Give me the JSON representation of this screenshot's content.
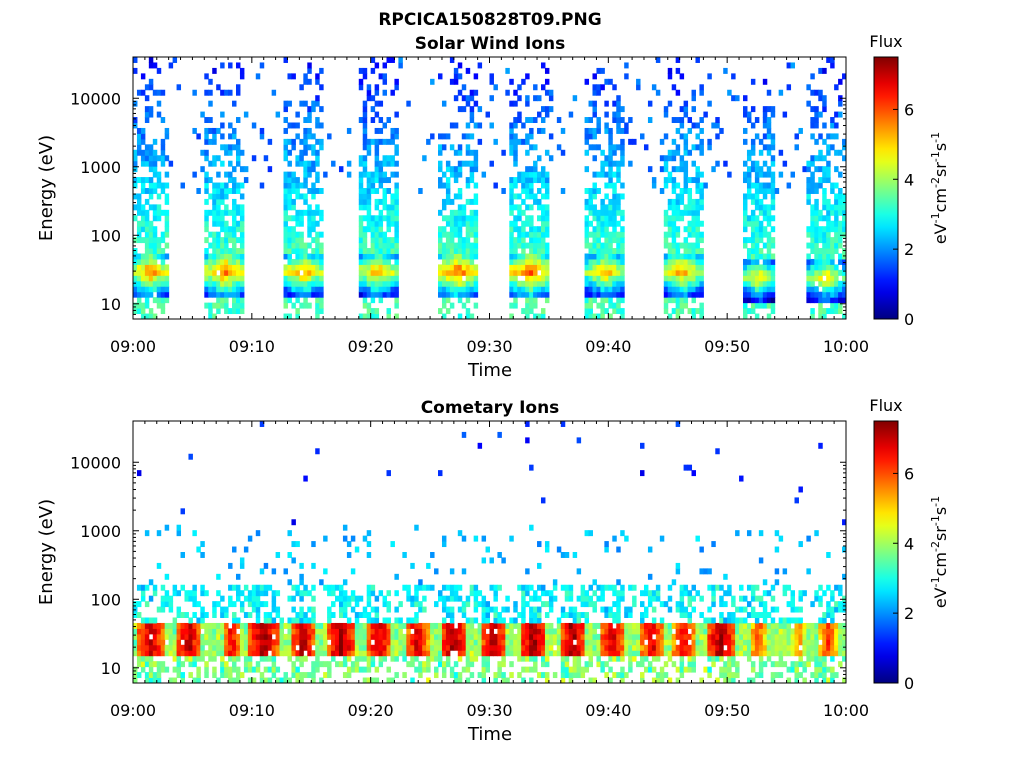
{
  "figure_title": "RPCICA150828T09.PNG",
  "chart_data": [
    {
      "type": "heatmap",
      "title": "Solar Wind Ions",
      "xlabel": "Time",
      "ylabel": "Energy (eV)",
      "x_ticks": [
        "09:00",
        "09:10",
        "09:20",
        "09:30",
        "09:40",
        "09:50",
        "10:00"
      ],
      "x_range": [
        "09:00",
        "10:00"
      ],
      "y_scale": "log",
      "y_ticks": [
        10,
        100,
        1000,
        10000
      ],
      "y_range": [
        6,
        40000
      ],
      "colorbar": {
        "label": "Flux",
        "units": "eV",
        "units_parts": [
          "eV",
          "-1",
          "cm",
          "-2",
          "sr",
          "-1",
          "s",
          "-1"
        ],
        "ticks": [
          0,
          2,
          4,
          6
        ],
        "range": [
          0,
          7.5
        ],
        "colormap": "jet"
      },
      "bursts": [
        {
          "center_min": 1.5,
          "width_min": 2.7,
          "peak_flux": 5.8,
          "peak_energy_eV": 30
        },
        {
          "center_min": 7.8,
          "width_min": 3.2,
          "peak_flux": 5.9,
          "peak_energy_eV": 30
        },
        {
          "center_min": 14.3,
          "width_min": 3.2,
          "peak_flux": 5.6,
          "peak_energy_eV": 30
        },
        {
          "center_min": 20.6,
          "width_min": 3.2,
          "peak_flux": 5.5,
          "peak_energy_eV": 30
        },
        {
          "center_min": 27.3,
          "width_min": 3.4,
          "peak_flux": 6.0,
          "peak_energy_eV": 30
        },
        {
          "center_min": 33.4,
          "width_min": 3.2,
          "peak_flux": 6.1,
          "peak_energy_eV": 30
        },
        {
          "center_min": 39.8,
          "width_min": 3.2,
          "peak_flux": 5.4,
          "peak_energy_eV": 30
        },
        {
          "center_min": 46.2,
          "width_min": 3.2,
          "peak_flux": 5.6,
          "peak_energy_eV": 30
        },
        {
          "center_min": 52.6,
          "width_min": 2.6,
          "peak_flux": 5.0,
          "peak_energy_eV": 25
        },
        {
          "center_min": 58.3,
          "width_min": 3.2,
          "peak_flux": 5.1,
          "peak_energy_eV": 25
        }
      ]
    },
    {
      "type": "heatmap",
      "title": "Cometary Ions",
      "xlabel": "Time",
      "ylabel": "Energy (eV)",
      "x_ticks": [
        "09:00",
        "09:10",
        "09:20",
        "09:30",
        "09:40",
        "09:50",
        "10:00"
      ],
      "x_range": [
        "09:00",
        "10:00"
      ],
      "y_scale": "log",
      "y_ticks": [
        10,
        100,
        1000,
        10000
      ],
      "y_range": [
        6,
        40000
      ],
      "colorbar": {
        "label": "Flux",
        "units": "eV",
        "units_parts": [
          "eV",
          "-1",
          "cm",
          "-2",
          "sr",
          "-1",
          "s",
          "-1"
        ],
        "ticks": [
          0,
          2,
          4,
          6
        ],
        "range": [
          0,
          7.5
        ],
        "colormap": "jet"
      },
      "band": {
        "energy_low_eV": 15,
        "energy_high_eV": 45,
        "peak_flux": 7.2
      },
      "bursts": [
        {
          "center_min": 1.5,
          "width_min": 2.4,
          "peak_flux": 7.0
        },
        {
          "center_min": 4.7,
          "width_min": 2.0,
          "peak_flux": 7.1
        },
        {
          "center_min": 8.3,
          "width_min": 1.6,
          "peak_flux": 6.6
        },
        {
          "center_min": 11.0,
          "width_min": 2.4,
          "peak_flux": 7.2
        },
        {
          "center_min": 14.3,
          "width_min": 2.0,
          "peak_flux": 7.1
        },
        {
          "center_min": 17.5,
          "width_min": 2.2,
          "peak_flux": 7.3
        },
        {
          "center_min": 20.7,
          "width_min": 2.0,
          "peak_flux": 7.0
        },
        {
          "center_min": 23.9,
          "width_min": 2.0,
          "peak_flux": 6.8
        },
        {
          "center_min": 27.0,
          "width_min": 2.2,
          "peak_flux": 7.2
        },
        {
          "center_min": 30.3,
          "width_min": 2.2,
          "peak_flux": 7.1
        },
        {
          "center_min": 33.7,
          "width_min": 2.2,
          "peak_flux": 7.3
        },
        {
          "center_min": 37.0,
          "width_min": 2.0,
          "peak_flux": 7.3
        },
        {
          "center_min": 40.3,
          "width_min": 2.2,
          "peak_flux": 6.9
        },
        {
          "center_min": 43.7,
          "width_min": 2.0,
          "peak_flux": 6.8
        },
        {
          "center_min": 46.3,
          "width_min": 2.0,
          "peak_flux": 6.6
        },
        {
          "center_min": 49.5,
          "width_min": 2.2,
          "peak_flux": 7.3
        },
        {
          "center_min": 52.6,
          "width_min": 1.2,
          "peak_flux": 6.2
        },
        {
          "center_min": 56.0,
          "width_min": 1.0,
          "peak_flux": 5.8
        },
        {
          "center_min": 58.5,
          "width_min": 1.6,
          "peak_flux": 6.1
        }
      ]
    }
  ]
}
